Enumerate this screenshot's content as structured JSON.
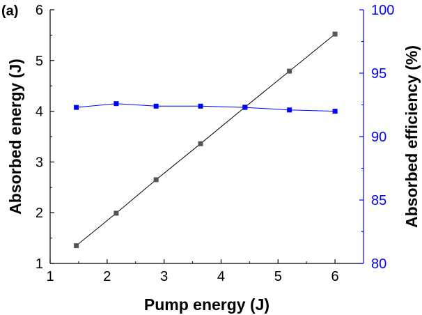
{
  "panel_label": "(a)",
  "colors": {
    "left_axis": "#000000",
    "right_axis": "#0000ff",
    "series_absorbed_energy": "#555555",
    "series_absorbed_efficiency": "#0000ff"
  },
  "chart_data": {
    "type": "line",
    "xlabel": "Pump energy (J)",
    "ylabel": "Absorbed energy (J)",
    "y2label": "Absorbed efficiency (%)",
    "xlim": [
      1,
      6.5
    ],
    "ylim": [
      1,
      6
    ],
    "y2lim": [
      80,
      100
    ],
    "xticks": [
      1,
      2,
      3,
      4,
      5,
      6
    ],
    "yticks": [
      1,
      2,
      3,
      4,
      5,
      6
    ],
    "y2ticks": [
      80,
      85,
      90,
      95,
      100
    ],
    "series": [
      {
        "name": "Absorbed energy",
        "axis": "left",
        "marker": "square",
        "x": [
          1.46,
          2.16,
          2.86,
          3.64,
          4.42,
          5.2,
          6.0
        ],
        "values": [
          1.35,
          1.99,
          2.65,
          3.36,
          4.08,
          4.79,
          5.52
        ]
      },
      {
        "name": "Absorbed efficiency",
        "axis": "right",
        "marker": "square",
        "x": [
          1.46,
          2.16,
          2.86,
          3.64,
          4.42,
          5.2,
          6.0
        ],
        "values": [
          92.3,
          92.6,
          92.4,
          92.4,
          92.3,
          92.1,
          92.0
        ]
      }
    ]
  }
}
